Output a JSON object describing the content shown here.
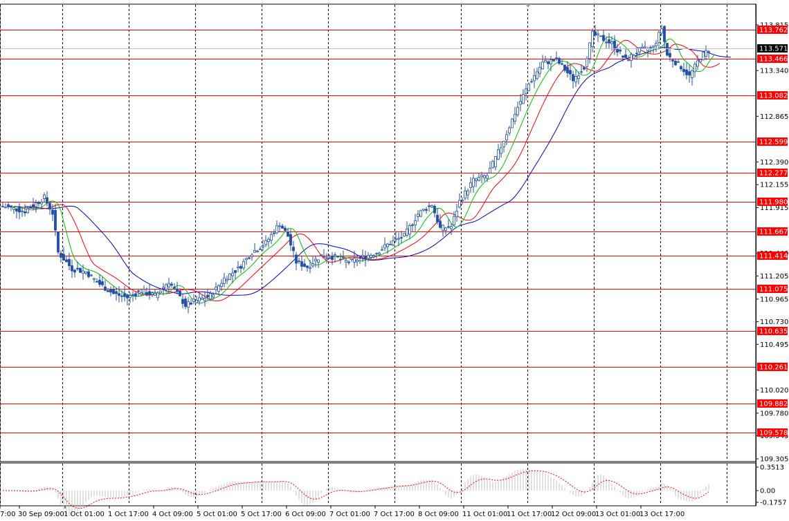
{
  "chart_data": [
    {
      "type": "candlestick",
      "y_axis_labels": [
        "113.815",
        "113.571",
        "113.340",
        "112.865",
        "112.390",
        "112.155",
        "111.915",
        "111.440",
        "111.205",
        "110.965",
        "110.730",
        "110.495",
        "110.020",
        "109.780",
        "109.545",
        "109.305"
      ],
      "y_axis_values": [
        113.815,
        113.571,
        113.34,
        112.865,
        112.39,
        112.155,
        111.915,
        111.44,
        111.205,
        110.965,
        110.73,
        110.495,
        110.02,
        109.78,
        109.545,
        109.305
      ],
      "current_price": {
        "label": "113.571",
        "value": 113.571
      },
      "ylim": [
        109.305,
        113.9
      ],
      "x_tick_labels": [
        "7:00",
        "30 Sep 09:00",
        "1 Oct 01:00",
        "1 Oct 17:00",
        "4 Oct 09:00",
        "5 Oct 01:00",
        "5 Oct 17:00",
        "6 Oct 09:00",
        "7 Oct 01:00",
        "7 Oct 17:00",
        "8 Oct 09:00",
        "11 Oct 01:00",
        "11 Oct 17:00",
        "12 Oct 09:00",
        "13 Oct 01:00",
        "13 Oct 17:00"
      ],
      "levels": [
        {
          "label": "113.762",
          "value": 113.762
        },
        {
          "label": "113.466",
          "value": 113.466
        },
        {
          "label": "113.082",
          "value": 113.082
        },
        {
          "label": "112.599",
          "value": 112.599
        },
        {
          "label": "112.277",
          "value": 112.277
        },
        {
          "label": "111.980",
          "value": 111.98
        },
        {
          "label": "111.667",
          "value": 111.667
        },
        {
          "label": "111.414",
          "value": 111.414
        },
        {
          "label": "111.075",
          "value": 111.075
        },
        {
          "label": "110.635",
          "value": 110.635
        },
        {
          "label": "110.261",
          "value": 110.261
        },
        {
          "label": "109.882",
          "value": 109.882
        },
        {
          "label": "109.578",
          "value": 109.578
        }
      ],
      "anchors": [
        [
          0,
          111.93
        ],
        [
          8,
          111.88
        ],
        [
          15,
          112.02
        ],
        [
          18,
          111.86
        ],
        [
          20,
          111.45
        ],
        [
          25,
          111.28
        ],
        [
          30,
          111.25
        ],
        [
          35,
          111.12
        ],
        [
          40,
          111.02
        ],
        [
          45,
          110.98
        ],
        [
          50,
          111.05
        ],
        [
          55,
          111.0
        ],
        [
          60,
          111.15
        ],
        [
          63,
          111.02
        ],
        [
          66,
          110.9
        ],
        [
          70,
          110.95
        ],
        [
          75,
          111.0
        ],
        [
          80,
          111.18
        ],
        [
          85,
          111.28
        ],
        [
          90,
          111.45
        ],
        [
          95,
          111.55
        ],
        [
          100,
          111.75
        ],
        [
          103,
          111.62
        ],
        [
          106,
          111.35
        ],
        [
          110,
          111.3
        ],
        [
          115,
          111.42
        ],
        [
          120,
          111.4
        ],
        [
          125,
          111.35
        ],
        [
          130,
          111.4
        ],
        [
          135,
          111.45
        ],
        [
          140,
          111.55
        ],
        [
          145,
          111.62
        ],
        [
          150,
          111.85
        ],
        [
          155,
          111.95
        ],
        [
          158,
          111.7
        ],
        [
          162,
          111.72
        ],
        [
          165,
          111.98
        ],
        [
          170,
          112.2
        ],
        [
          175,
          112.25
        ],
        [
          180,
          112.55
        ],
        [
          185,
          112.9
        ],
        [
          190,
          113.2
        ],
        [
          195,
          113.42
        ],
        [
          200,
          113.45
        ],
        [
          203,
          113.35
        ],
        [
          206,
          113.25
        ],
        [
          210,
          113.38
        ],
        [
          213,
          113.72
        ],
        [
          216,
          113.68
        ],
        [
          220,
          113.62
        ],
        [
          225,
          113.45
        ],
        [
          230,
          113.55
        ],
        [
          235,
          113.58
        ],
        [
          238,
          113.78
        ],
        [
          240,
          113.5
        ],
        [
          245,
          113.38
        ],
        [
          248,
          113.28
        ],
        [
          252,
          113.48
        ],
        [
          255,
          113.56
        ]
      ],
      "ma_colors": {
        "green": "#00c000",
        "red": "#ff0000",
        "blue": "#0000c8"
      },
      "ma_periods": {
        "green": 5,
        "red": 10,
        "blue": 20
      },
      "candle_color": "#1f4fa8",
      "level_color": "#ff0000",
      "grid": "dashed vertical",
      "osc_labels": [
        "0.3513",
        "0.00",
        "-0.1757"
      ],
      "osc_values": [
        0.3513,
        0.0,
        -0.1757
      ]
    }
  ]
}
